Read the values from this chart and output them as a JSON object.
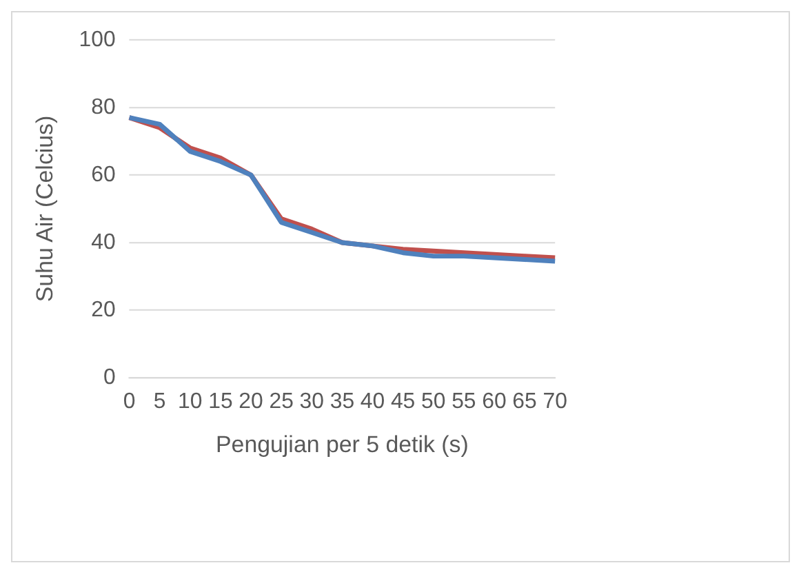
{
  "chart_data": {
    "type": "line",
    "xlabel": "Pengujian per 5 detik (s)",
    "ylabel": "Suhu Air (Celcius)",
    "categories": [
      "0",
      "5",
      "10",
      "15",
      "20",
      "25",
      "30",
      "35",
      "40",
      "45",
      "50",
      "55",
      "60",
      "65",
      "70"
    ],
    "series": [
      {
        "color": "#4f81bd",
        "values": [
          77,
          75,
          67,
          64,
          60,
          46,
          43,
          40,
          39,
          37,
          36,
          36,
          35.5,
          35,
          34.5
        ]
      },
      {
        "color": "#c0504d",
        "values": [
          77,
          74,
          68,
          65,
          60,
          47,
          44,
          40,
          39,
          38,
          37.5,
          37,
          36.5,
          36,
          35.5
        ]
      }
    ],
    "ylim": [
      0,
      100
    ],
    "yticks": [
      0,
      20,
      40,
      60,
      80,
      100
    ],
    "grid": "y",
    "marker": "none",
    "line_style": "solid"
  }
}
